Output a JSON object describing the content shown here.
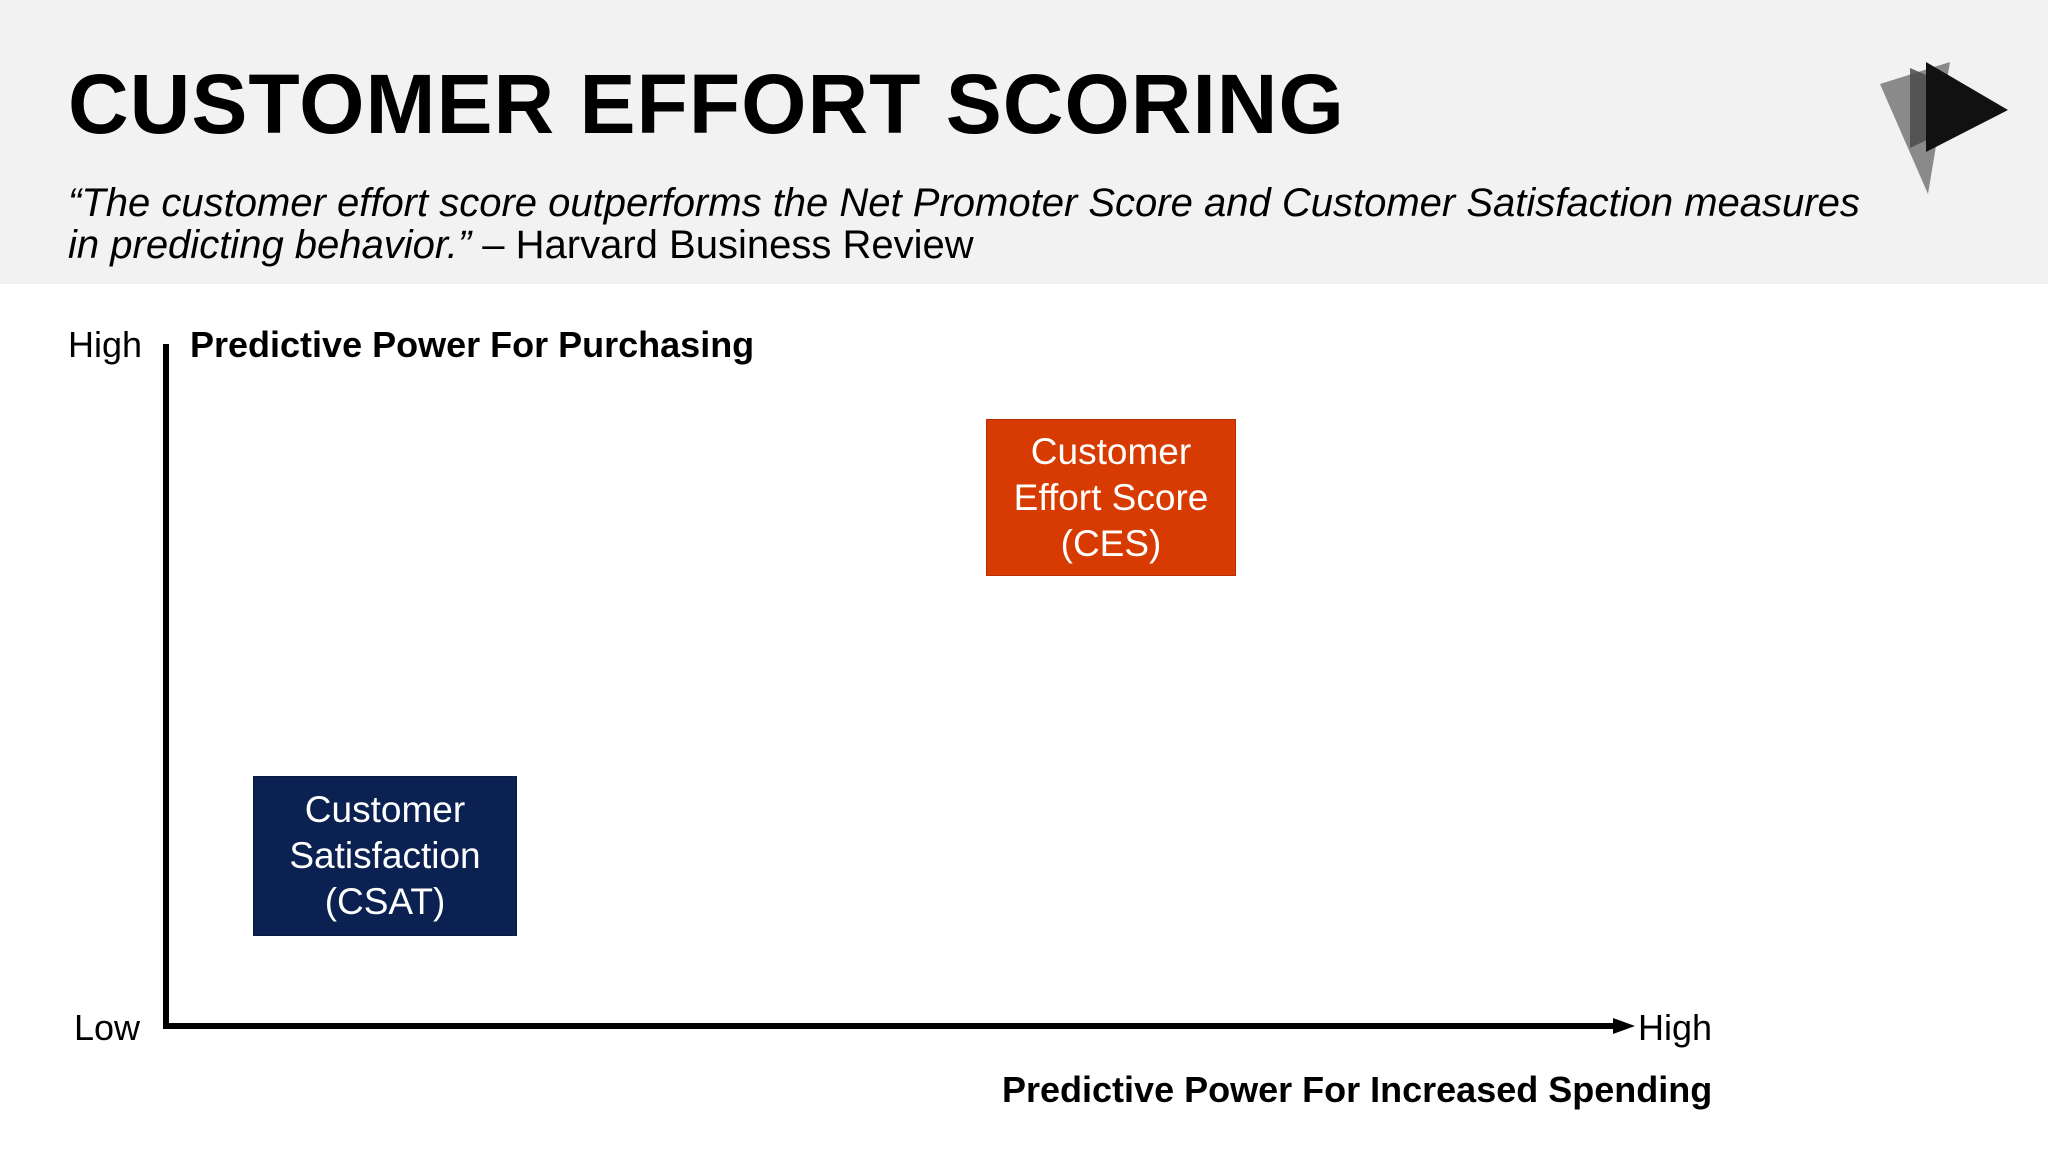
{
  "header": {
    "title": "CUSTOMER EFFORT SCORING",
    "quote": "“The customer effort score outperforms the Net Promoter Score and Customer Satisfaction measures in predicting behavior.”",
    "attribution": " – Harvard Business Review"
  },
  "chart": {
    "y_axis_title": "Predictive Power For Purchasing",
    "x_axis_title": "Predictive Power For Increased Spending",
    "y_high_label": "High",
    "origin_label": "Low",
    "x_high_label": "High"
  },
  "boxes": {
    "ces": {
      "line1": "Customer",
      "line2": "Effort Score",
      "line3": "(CES)",
      "color": "#d83b01"
    },
    "csat": {
      "line1": "Customer",
      "line2": "Satisfaction",
      "line3": "(CSAT)",
      "color": "#0b2151"
    }
  },
  "colors": {
    "header_band": "#f2f2f2",
    "axis": "#000000"
  },
  "logo": {
    "icon": "play-triangle-logo-icon"
  }
}
